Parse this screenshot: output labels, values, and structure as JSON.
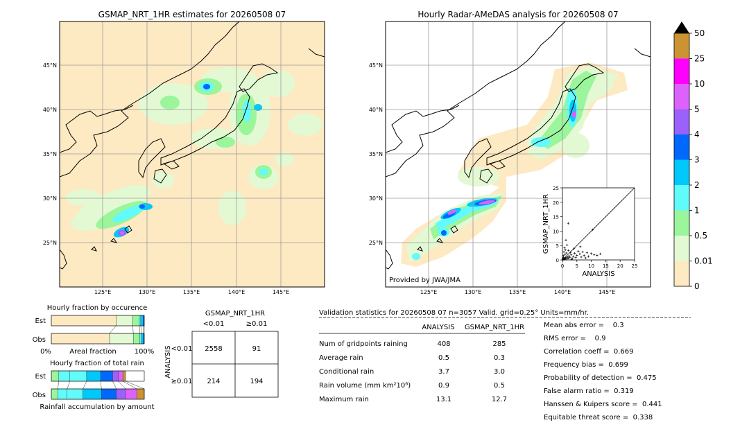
{
  "map_left": {
    "title": "GSMAP_NRT_1HR estimates for 20260508 07",
    "lat_ticks": [
      "45°N",
      "40°N",
      "35°N",
      "30°N",
      "25°N"
    ],
    "lon_ticks": [
      "125°E",
      "130°E",
      "135°E",
      "140°E",
      "145°E"
    ]
  },
  "map_right": {
    "title": "Hourly Radar-AMeDAS analysis for 20260508 07",
    "lat_ticks": [
      "45°N",
      "40°N",
      "35°N",
      "30°N",
      "25°N"
    ],
    "lon_ticks": [
      "125°E",
      "130°E",
      "135°E",
      "140°E",
      "145°E"
    ],
    "credit": "Provided by JWA/JMA"
  },
  "colorbar": {
    "labels": [
      "0",
      "0.01",
      "0.5",
      "1",
      "2",
      "3",
      "4",
      "5",
      "10",
      "25",
      "50"
    ],
    "colors": [
      "#fde9c2",
      "#e3f9d3",
      "#9bf59b",
      "#61fbfb",
      "#00c8fb",
      "#0069fb",
      "#9b61fb",
      "#dd61fb",
      "#ff00ff",
      "#cc9333"
    ]
  },
  "chart_data": [
    {
      "type": "scatter",
      "xlabel": "ANALYSIS",
      "ylabel": "GSMAP_NRT_1HR",
      "xlim": [
        0,
        25
      ],
      "ylim": [
        0,
        25
      ],
      "x_ticks": [
        "0",
        "5",
        "10",
        "15",
        "20",
        "25"
      ],
      "y_ticks": [
        "0",
        "5",
        "10",
        "15",
        "20",
        "25"
      ],
      "points": [
        [
          0.2,
          0.1
        ],
        [
          0.4,
          0.3
        ],
        [
          0.6,
          0.2
        ],
        [
          0.8,
          0.5
        ],
        [
          1,
          0.4
        ],
        [
          1.2,
          0.8
        ],
        [
          1.5,
          0.3
        ],
        [
          1.8,
          1
        ],
        [
          2,
          0.6
        ],
        [
          2.3,
          1.4
        ],
        [
          2.6,
          0.9
        ],
        [
          3,
          1.8
        ],
        [
          3.4,
          0.5
        ],
        [
          3.8,
          1.2
        ],
        [
          4.2,
          2.3
        ],
        [
          4.6,
          0.8
        ],
        [
          5,
          1.6
        ],
        [
          5.5,
          3
        ],
        [
          6,
          2.1
        ],
        [
          6.5,
          1
        ],
        [
          7,
          2.8
        ],
        [
          7.5,
          1.5
        ],
        [
          8,
          0.7
        ],
        [
          8.5,
          2.5
        ],
        [
          9,
          1.2
        ],
        [
          10,
          2.2
        ],
        [
          11,
          1.8
        ],
        [
          12,
          1.6
        ],
        [
          13.1,
          2.1
        ],
        [
          0.3,
          1.5
        ],
        [
          0.5,
          2.8
        ],
        [
          0.7,
          4.2
        ],
        [
          1,
          3.5
        ],
        [
          1.2,
          6.9
        ],
        [
          1.6,
          5.2
        ],
        [
          0.4,
          0.9
        ],
        [
          0.9,
          1.9
        ],
        [
          1.4,
          2.4
        ],
        [
          2.1,
          3.3
        ],
        [
          2.8,
          2.6
        ],
        [
          3.2,
          0.2
        ],
        [
          0.1,
          0.6
        ],
        [
          2,
          12.7
        ],
        [
          10.5,
          10.5
        ],
        [
          6.2,
          4.6
        ],
        [
          4,
          3.9
        ]
      ]
    },
    {
      "type": "bar",
      "title": "Hourly fraction by occurence",
      "categories": [
        "Est",
        "Obs"
      ],
      "series_values": [
        [
          0.697,
          0.18,
          0.07,
          0.015,
          0.025,
          0.013
        ],
        [
          0.627,
          0.255,
          0.07,
          0.018,
          0.02,
          0.01
        ]
      ],
      "xlabel": "Areal fraction",
      "x_ticks": [
        "0%",
        "100%"
      ]
    },
    {
      "type": "bar",
      "title": "Hourly fraction of total rain",
      "categories": [
        "Est",
        "Obs"
      ],
      "series_values": [
        [
          0.08,
          0.12,
          0.18,
          0.15,
          0.13,
          0.06,
          0.05,
          0.03
        ],
        [
          0.07,
          0.1,
          0.17,
          0.2,
          0.16,
          0.1,
          0.12,
          0.08
        ]
      ],
      "xlabel": "Rainfall accumulation by amount"
    }
  ],
  "contingency": {
    "title": "GSMAP_NRT_1HR",
    "col_lt": "<0.01",
    "col_ge": "≥0.01",
    "axis_label": "ANALYSIS",
    "row_lt": "<0.01",
    "row_ge": "≥0.01",
    "cells": [
      "2558",
      "91",
      "214",
      "194"
    ]
  },
  "validation": {
    "header": "Validation statistics for 20260508 07  n=3057 Valid. grid=0.25° Units=mm/hr.",
    "col_analysis": "ANALYSIS",
    "col_gsmap": "GSMAP_NRT_1HR",
    "rows": [
      {
        "label": "Num of gridpoints raining",
        "analysis": "408",
        "gsmap": "285"
      },
      {
        "label": "Average rain",
        "analysis": "0.5",
        "gsmap": "0.3"
      },
      {
        "label": "Conditional rain",
        "analysis": "3.7",
        "gsmap": "3.0"
      },
      {
        "label": "Rain volume (mm km²10⁶)",
        "analysis": "0.9",
        "gsmap": "0.5"
      },
      {
        "label": "Maximum rain",
        "analysis": "13.1",
        "gsmap": "12.7"
      }
    ],
    "scores": [
      "Mean abs error =    0.3",
      "RMS error =    0.9",
      "Correlation coeff =  0.669",
      "Frequency bias =  0.699",
      "Probability of detection =  0.475",
      "False alarm ratio =  0.319",
      "Hanssen & Kuipers score =  0.441",
      "Equitable threat score =  0.338"
    ]
  }
}
